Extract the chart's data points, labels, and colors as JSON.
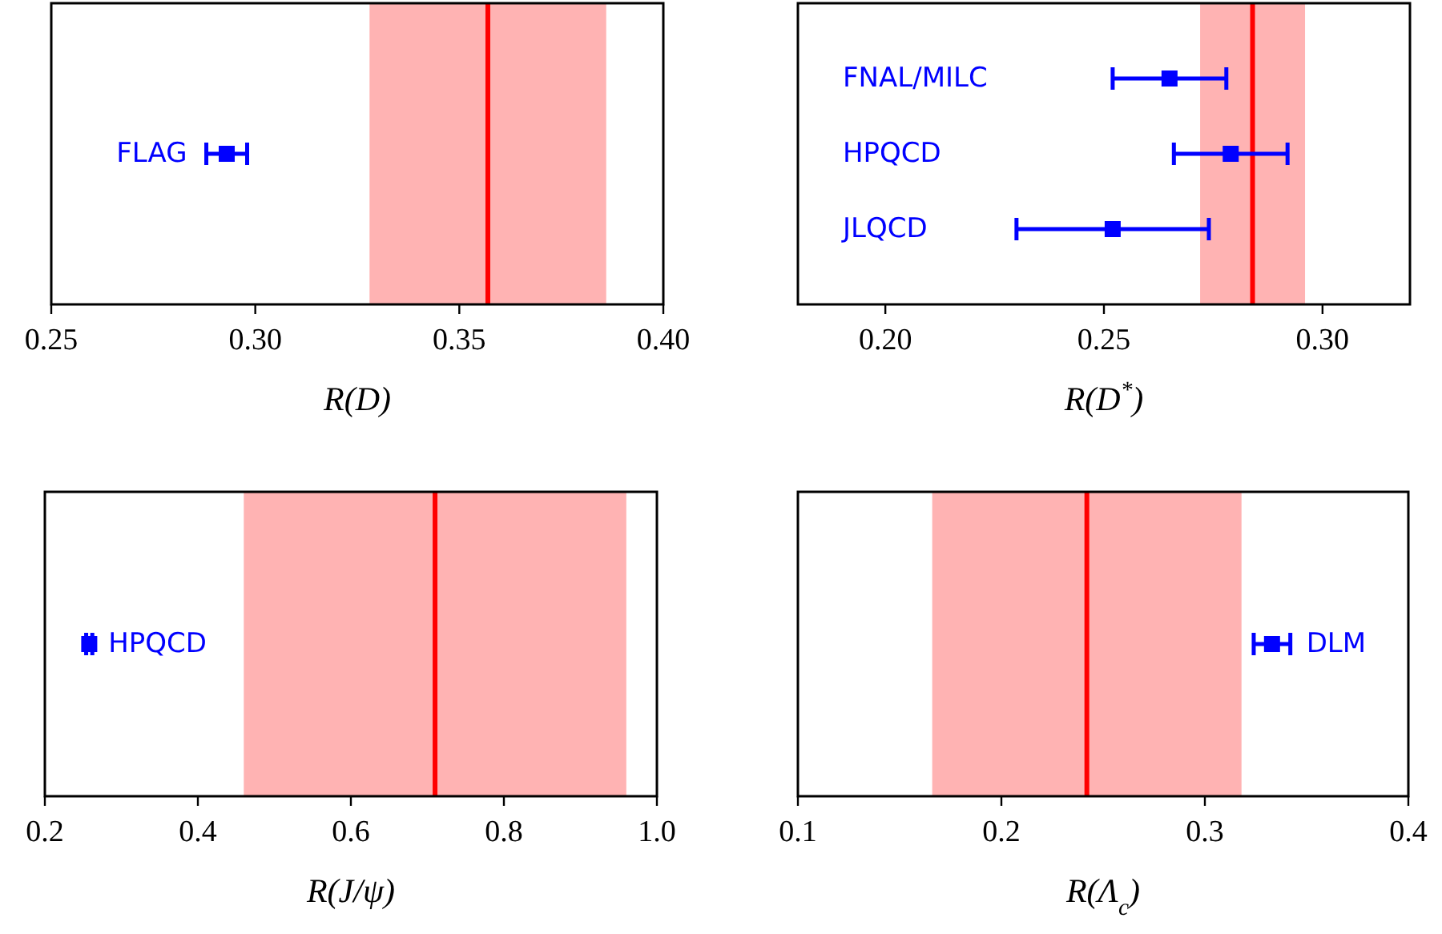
{
  "chart_data": [
    {
      "type": "scatter",
      "orientation": "horizontal",
      "marker": "square",
      "color": "#0000ff",
      "categories": [
        "FLAG"
      ],
      "values": [
        0.293
      ],
      "errors": [
        0.005
      ],
      "xlabel": "R(D)",
      "xlim": [
        0.25,
        0.4
      ],
      "xticks": [
        {
          "value": 0.25,
          "label": "0.25"
        },
        {
          "value": 0.3,
          "label": "0.30"
        },
        {
          "value": 0.35,
          "label": "0.35"
        },
        {
          "value": 0.4,
          "label": "0.40"
        }
      ],
      "ref_lines": [
        {
          "axis": "x",
          "value": 0.357,
          "color": "#ff0000"
        }
      ],
      "bands": [
        {
          "axis": "x",
          "from": 0.328,
          "to": 0.386,
          "color": "#ffb3b3"
        }
      ]
    },
    {
      "type": "scatter",
      "orientation": "horizontal",
      "marker": "square",
      "color": "#0000ff",
      "categories": [
        "FNAL/MILC",
        "HPQCD",
        "JLQCD"
      ],
      "values": [
        0.265,
        0.279,
        0.252
      ],
      "errors": [
        0.013,
        0.013,
        0.022
      ],
      "xlabel": "R(D$^{*}$)",
      "xlim": [
        0.18,
        0.32
      ],
      "xticks": [
        {
          "value": 0.2,
          "label": "0.20"
        },
        {
          "value": 0.25,
          "label": "0.25"
        },
        {
          "value": 0.3,
          "label": "0.30"
        }
      ],
      "ref_lines": [
        {
          "axis": "x",
          "value": 0.284,
          "color": "#ff0000"
        }
      ],
      "bands": [
        {
          "axis": "x",
          "from": 0.272,
          "to": 0.296,
          "color": "#ffb3b3"
        }
      ]
    },
    {
      "type": "scatter",
      "orientation": "horizontal",
      "marker": "square",
      "color": "#0000ff",
      "categories": [
        "HPQCD"
      ],
      "values": [
        0.258
      ],
      "errors": [
        0.004
      ],
      "xlabel": "R(J/ψ)",
      "xlim": [
        0.2,
        1.0
      ],
      "xticks": [
        0.2,
        0.4,
        0.6,
        0.8,
        {
          "value": 1.0,
          "label": "1.0"
        }
      ],
      "ref_lines": [
        {
          "axis": "x",
          "value": 0.71,
          "color": "#ff0000"
        }
      ],
      "bands": [
        {
          "axis": "x",
          "from": 0.46,
          "to": 0.96,
          "color": "#ffb3b3"
        }
      ]
    },
    {
      "type": "scatter",
      "orientation": "horizontal",
      "marker": "square",
      "color": "#0000ff",
      "categories": [
        "DLM"
      ],
      "values": [
        0.333
      ],
      "errors": [
        0.009
      ],
      "xlabel": "R(Λ$_{c}$)",
      "xlim": [
        0.1,
        0.4
      ],
      "xticks": [
        0.1,
        0.2,
        0.3,
        0.4
      ],
      "ref_lines": [
        {
          "axis": "x",
          "value": 0.242,
          "color": "#ff0000"
        }
      ],
      "bands": [
        {
          "axis": "x",
          "from": 0.166,
          "to": 0.318,
          "color": "#ffb3b3"
        }
      ]
    }
  ]
}
